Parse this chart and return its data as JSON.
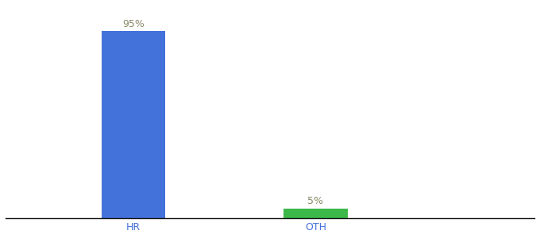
{
  "categories": [
    "HR",
    "OTH"
  ],
  "values": [
    95,
    5
  ],
  "bar_colors": [
    "#4472db",
    "#3cb84a"
  ],
  "bar_labels": [
    "95%",
    "5%"
  ],
  "background_color": "#ffffff",
  "ylim": [
    0,
    108
  ],
  "label_fontsize": 9,
  "tick_fontsize": 9,
  "bar_width": 0.35,
  "x_positions": [
    1,
    2
  ],
  "xlim": [
    0.3,
    3.2
  ],
  "label_color": "#888866",
  "tick_color": "#4472db"
}
